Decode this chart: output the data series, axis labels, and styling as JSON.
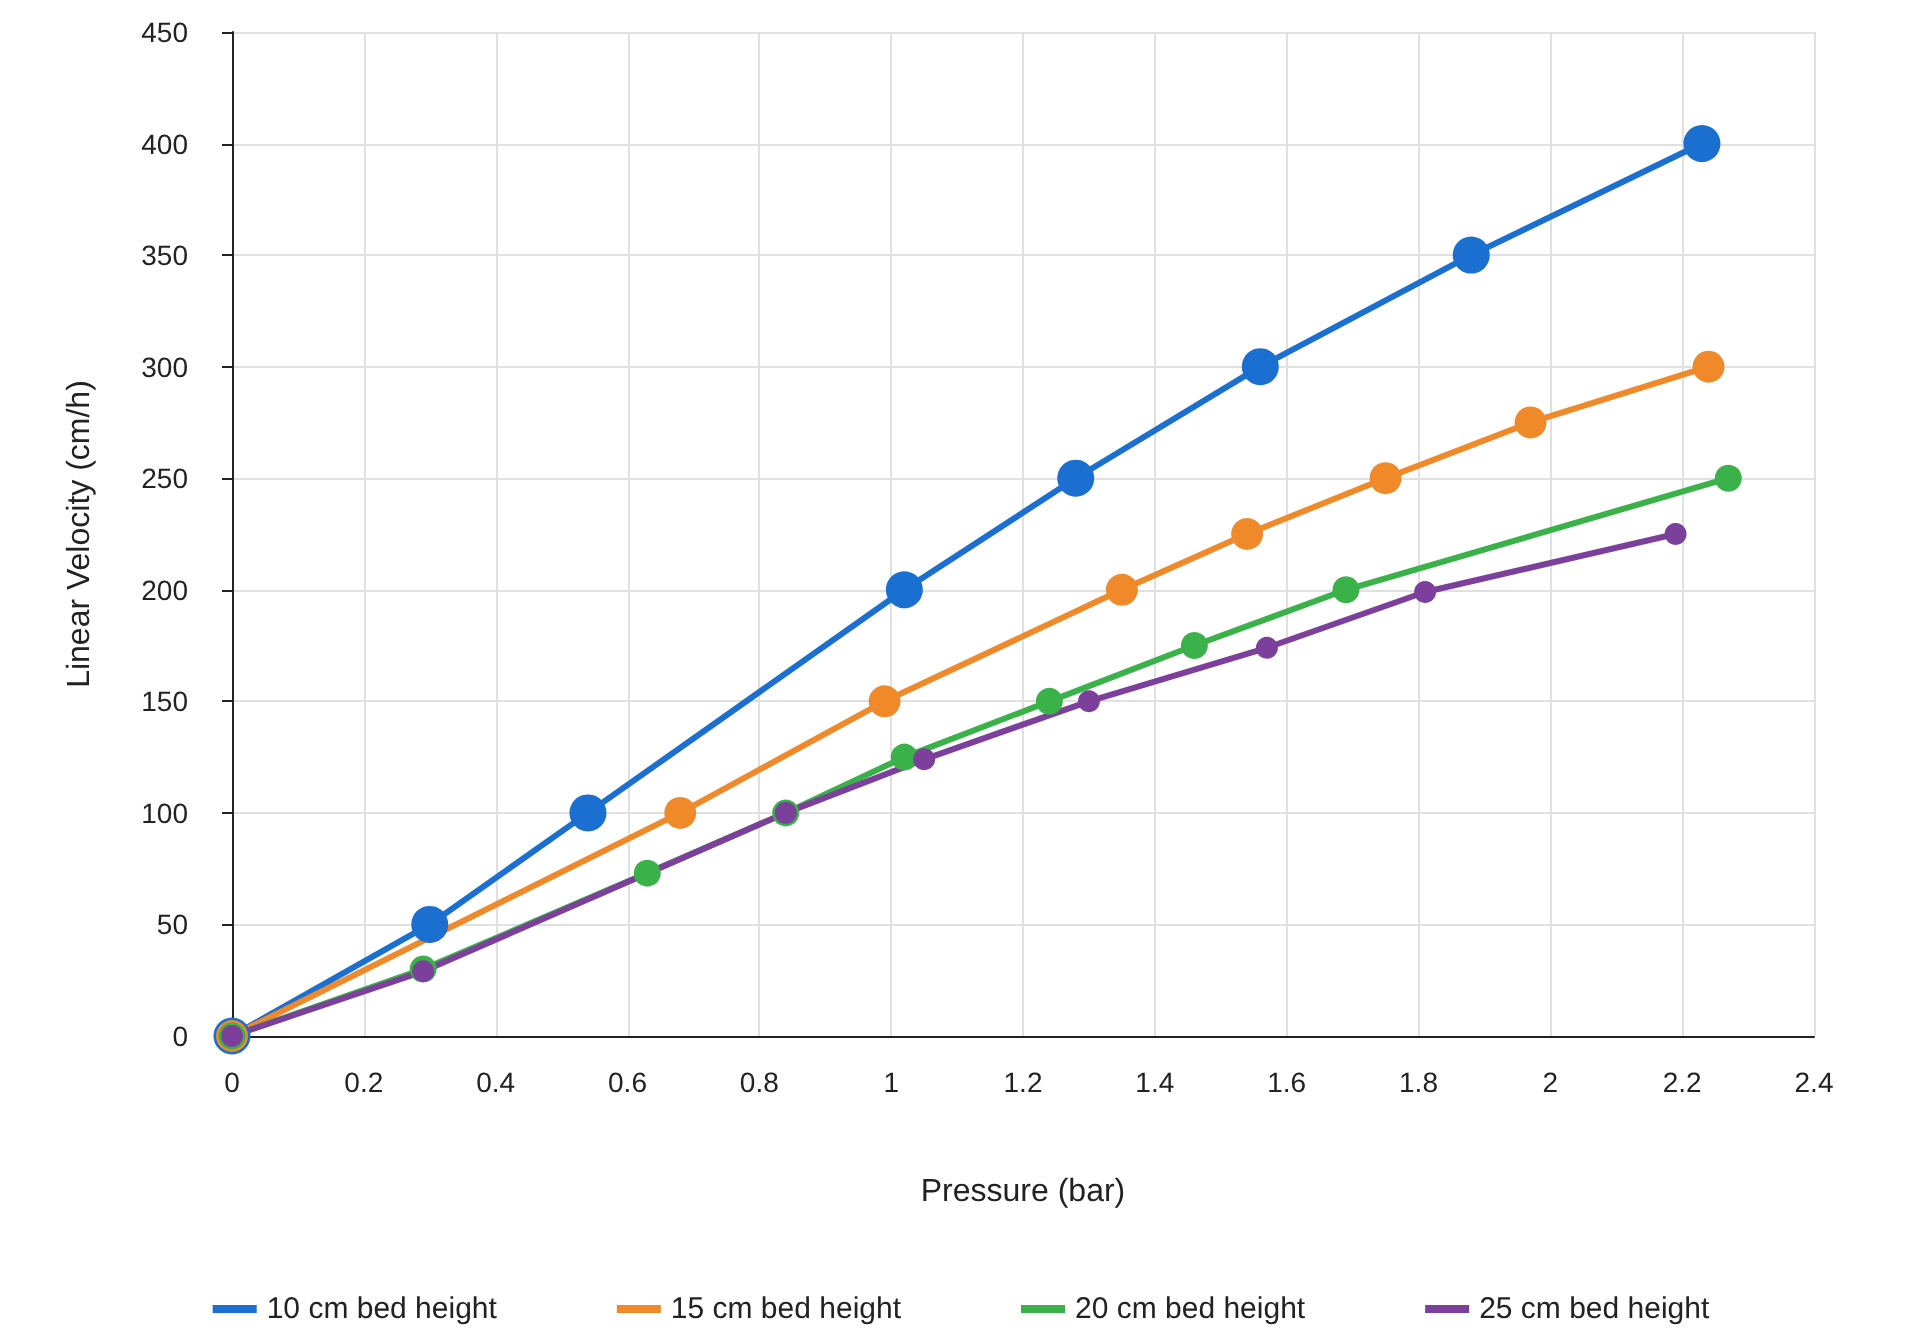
{
  "chart_data": {
    "type": "line",
    "xlabel": "Pressure (bar)",
    "ylabel": "Linear Velocity (cm/h)",
    "xlim": [
      0,
      2.4
    ],
    "xticks": [
      0,
      0.2,
      0.4,
      0.6,
      0.8,
      1,
      1.2,
      1.4,
      1.6,
      1.8,
      2,
      2.2,
      2.4
    ],
    "ylim": [
      0,
      450
    ],
    "yticks": [
      0,
      50,
      100,
      150,
      200,
      250,
      300,
      350,
      400,
      450
    ],
    "grid": true,
    "legend": "bottom",
    "marker": "circle",
    "line_style": "solid",
    "series": [
      {
        "name": "10 cm bed height",
        "color": "#1a6fd0",
        "x": [
          0,
          0.3,
          0.54,
          1.02,
          1.28,
          1.56,
          1.88,
          2.23
        ],
        "values": [
          0,
          50,
          100,
          200,
          250,
          300,
          350,
          400
        ]
      },
      {
        "name": "15 cm bed height",
        "color": "#f0892a",
        "x": [
          0,
          0.68,
          0.99,
          1.35,
          1.54,
          1.75,
          1.97,
          2.24
        ],
        "values": [
          0,
          100,
          150,
          200,
          225,
          250,
          275,
          300
        ]
      },
      {
        "name": "20 cm bed height",
        "color": "#3bb14a",
        "x": [
          0,
          0.29,
          0.63,
          0.84,
          1.02,
          1.24,
          1.46,
          1.69,
          2.27
        ],
        "values": [
          0,
          30,
          73,
          100,
          125,
          150,
          175,
          200,
          250
        ]
      },
      {
        "name": "25 cm bed height",
        "color": "#7d3f9c",
        "x": [
          0,
          0.29,
          0.84,
          1.05,
          1.3,
          1.57,
          1.81,
          2.19
        ],
        "values": [
          0,
          29,
          100,
          124,
          150,
          174,
          199,
          225
        ]
      }
    ]
  }
}
